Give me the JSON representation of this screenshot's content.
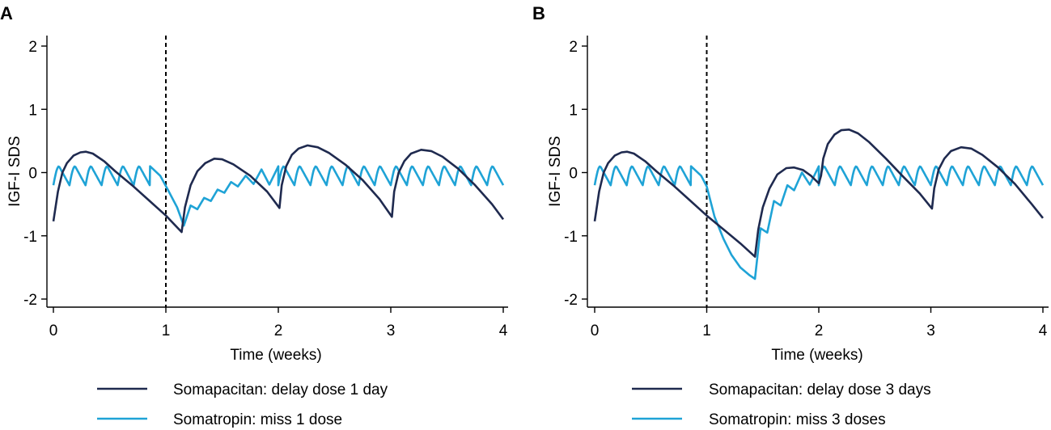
{
  "chart_data": [
    {
      "panel_label": "A",
      "type": "line",
      "xlabel": "Time (weeks)",
      "ylabel": "IGF-I SDS",
      "xlim": [
        0,
        4
      ],
      "ylim": [
        -2.2,
        2.2
      ],
      "xticks": [
        0,
        1,
        2,
        3,
        4
      ],
      "yticks": [
        -2,
        -1,
        0,
        1,
        2
      ],
      "vline_x": 1,
      "grid": false,
      "legend_position": "bottom",
      "series": [
        {
          "name": "Somapacitan: delay dose 1 day",
          "color": "#1f2a4f",
          "x": [
            0,
            0.04,
            0.08,
            0.12,
            0.18,
            0.24,
            0.29,
            0.35,
            0.45,
            0.55,
            0.7,
            0.85,
            1.0,
            1.14,
            1.17,
            1.22,
            1.28,
            1.35,
            1.43,
            1.5,
            1.6,
            1.75,
            1.9,
            2.01,
            2.03,
            2.07,
            2.12,
            2.18,
            2.26,
            2.35,
            2.45,
            2.6,
            2.75,
            2.9,
            3.01,
            3.03,
            3.07,
            3.12,
            3.18,
            3.27,
            3.36,
            3.46,
            3.6,
            3.75,
            3.9,
            4.0
          ],
          "y": [
            -0.77,
            -0.3,
            0.0,
            0.15,
            0.27,
            0.32,
            0.33,
            0.3,
            0.18,
            0.02,
            -0.2,
            -0.44,
            -0.68,
            -0.94,
            -0.55,
            -0.2,
            0.02,
            0.15,
            0.22,
            0.21,
            0.13,
            -0.05,
            -0.3,
            -0.56,
            -0.2,
            0.1,
            0.28,
            0.38,
            0.43,
            0.4,
            0.31,
            0.12,
            -0.12,
            -0.42,
            -0.7,
            -0.3,
            0.0,
            0.18,
            0.3,
            0.36,
            0.34,
            0.25,
            0.06,
            -0.2,
            -0.5,
            -0.74
          ]
        },
        {
          "name": "Somatropin: miss 1 dose",
          "color": "#1fa3d6",
          "pattern": "daily",
          "peak": 0.1,
          "trough": -0.2,
          "x": [
            0,
            0.86,
            0.95,
            1.02,
            1.1,
            1.16,
            1.22,
            1.28,
            1.34,
            1.4,
            1.46,
            1.52,
            1.58,
            1.64,
            1.71,
            1.78,
            1.85,
            1.92,
            2.0,
            4.0
          ],
          "y": [
            -0.2,
            0.1,
            -0.05,
            -0.28,
            -0.55,
            -0.84,
            -0.52,
            -0.58,
            -0.4,
            -0.45,
            -0.27,
            -0.32,
            -0.15,
            -0.22,
            -0.05,
            -0.18,
            0.05,
            -0.19,
            0.1,
            -0.2
          ]
        }
      ]
    },
    {
      "panel_label": "B",
      "type": "line",
      "xlabel": "Time (weeks)",
      "ylabel": "IGF-I SDS",
      "xlim": [
        0,
        4
      ],
      "ylim": [
        -2.2,
        2.2
      ],
      "xticks": [
        0,
        1,
        2,
        3,
        4
      ],
      "yticks": [
        -2,
        -1,
        0,
        1,
        2
      ],
      "vline_x": 1,
      "grid": false,
      "legend_position": "bottom",
      "series": [
        {
          "name": "Somapacitan: delay dose 3 days",
          "color": "#1f2a4f",
          "x": [
            0,
            0.04,
            0.08,
            0.12,
            0.18,
            0.24,
            0.29,
            0.35,
            0.45,
            0.55,
            0.7,
            0.85,
            1.0,
            1.15,
            1.3,
            1.43,
            1.46,
            1.5,
            1.56,
            1.63,
            1.71,
            1.78,
            1.86,
            1.93,
            2.0,
            2.02,
            2.04,
            2.08,
            2.14,
            2.2,
            2.27,
            2.35,
            2.45,
            2.6,
            2.75,
            2.9,
            3.01,
            3.03,
            3.07,
            3.12,
            3.18,
            3.27,
            3.36,
            3.46,
            3.6,
            3.75,
            3.9,
            4.0
          ],
          "y": [
            -0.77,
            -0.3,
            0.0,
            0.15,
            0.27,
            0.32,
            0.33,
            0.3,
            0.18,
            0.02,
            -0.2,
            -0.44,
            -0.68,
            -0.9,
            -1.12,
            -1.33,
            -0.9,
            -0.55,
            -0.25,
            -0.03,
            0.07,
            0.08,
            0.04,
            -0.05,
            -0.17,
            -0.05,
            0.22,
            0.45,
            0.6,
            0.67,
            0.68,
            0.62,
            0.48,
            0.22,
            -0.06,
            -0.33,
            -0.57,
            -0.25,
            0.05,
            0.22,
            0.34,
            0.4,
            0.38,
            0.28,
            0.08,
            -0.18,
            -0.5,
            -0.72
          ]
        },
        {
          "name": "Somatropin: miss 3 doses",
          "color": "#1fa3d6",
          "pattern": "daily",
          "peak": 0.1,
          "trough": -0.2,
          "x": [
            0,
            0.86,
            0.95,
            1.0,
            1.07,
            1.15,
            1.22,
            1.3,
            1.38,
            1.43,
            1.48,
            1.54,
            1.6,
            1.66,
            1.72,
            1.78,
            1.85,
            1.92,
            2.0,
            4.0
          ],
          "y": [
            -0.2,
            0.1,
            -0.05,
            -0.22,
            -0.7,
            -1.05,
            -1.3,
            -1.5,
            -1.62,
            -1.68,
            -0.88,
            -0.95,
            -0.45,
            -0.52,
            -0.2,
            -0.28,
            0.0,
            -0.19,
            0.1,
            -0.2
          ]
        }
      ]
    }
  ]
}
